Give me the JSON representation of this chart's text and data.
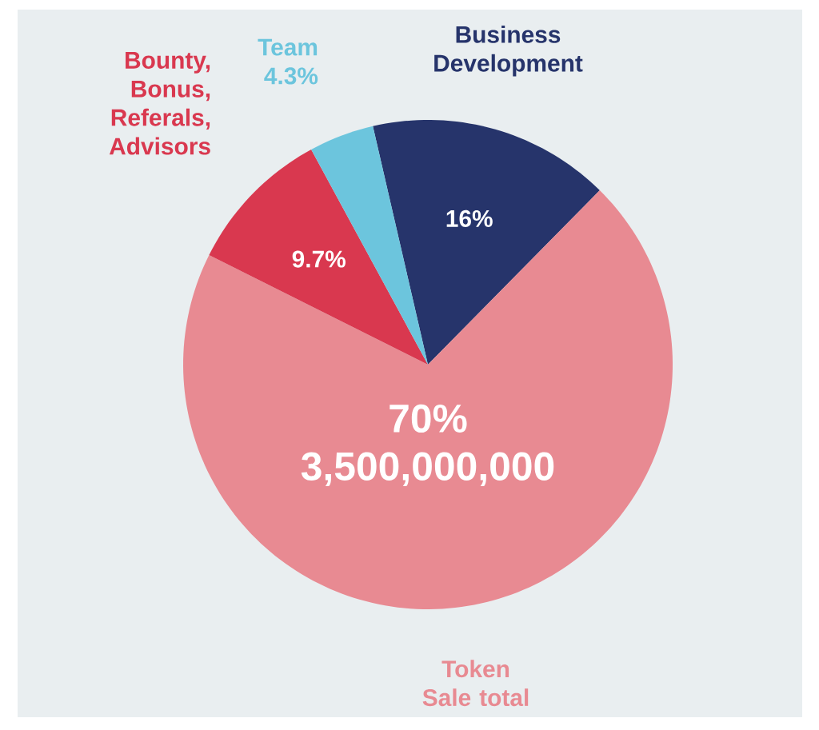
{
  "chart_data": {
    "type": "pie",
    "categories": [
      "Business Development",
      "Token Sale total",
      "Bounty, Bonus, Referals, Advisors",
      "Team"
    ],
    "values": [
      16,
      70,
      9.7,
      4.3
    ],
    "colors": [
      "#26346b",
      "#e88a92",
      "#d9384f",
      "#6cc5dd"
    ],
    "value_labels": [
      "16%",
      "70%",
      "9.7%",
      "4.3%"
    ],
    "annotations": [
      "3,500,000,000"
    ]
  }
}
